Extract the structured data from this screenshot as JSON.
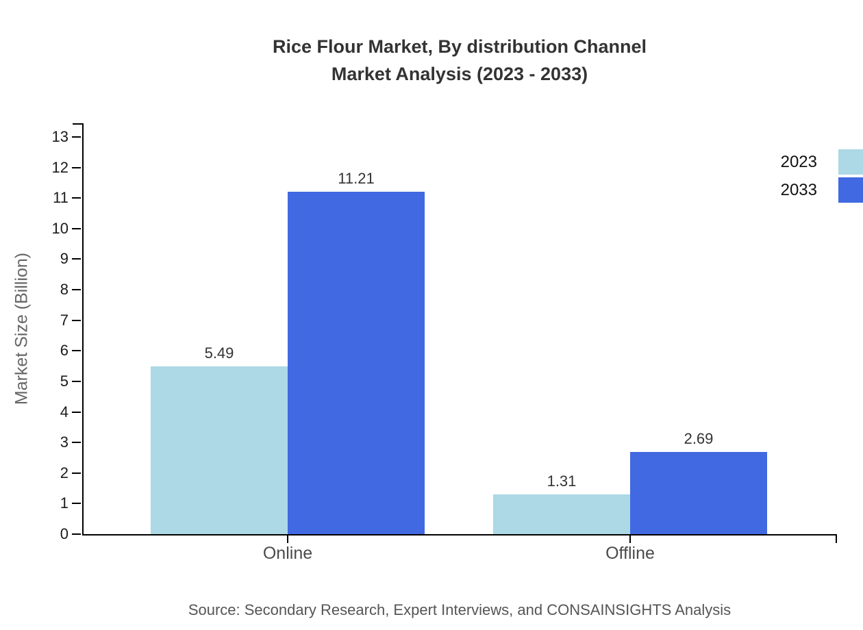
{
  "title": {
    "line1": "Rice Flour Market, By distribution Channel",
    "line2": "Market Analysis (2023 - 2033)"
  },
  "source": "Source: Secondary Research, Expert Interviews, and CONSAINSIGHTS Analysis",
  "colors": {
    "series_2023": "#ADD8E6",
    "series_2033": "#4169E1",
    "axis": "#000000",
    "title_text": "#333333",
    "tick_text": "#1a1a1a",
    "category_text": "#4a4a4a",
    "value_text": "#333333",
    "muted_text": "#666666",
    "source_text": "#555555",
    "background": "#ffffff"
  },
  "chart_data": {
    "type": "bar",
    "title": "Rice Flour Market, By distribution Channel Market Analysis (2023 - 2033)",
    "categories": [
      "Online",
      "Offline"
    ],
    "series": [
      {
        "name": "2023",
        "color": "#ADD8E6",
        "values": [
          5.49,
          1.31
        ]
      },
      {
        "name": "2033",
        "color": "#4169E1",
        "values": [
          11.21,
          2.69
        ]
      }
    ],
    "value_labels": [
      [
        "5.49",
        "1.31"
      ],
      [
        "11.21",
        "2.69"
      ]
    ],
    "xlabel": "",
    "ylabel": "Market Size (Billion)",
    "ylim": [
      0,
      13
    ],
    "yticks": [
      0,
      1,
      2,
      3,
      4,
      5,
      6,
      7,
      8,
      9,
      10,
      11,
      12,
      13
    ],
    "grid": false,
    "legend_position": "top-right",
    "value_labels_shown": true
  },
  "legend": {
    "items": [
      {
        "label": "2023"
      },
      {
        "label": "2033"
      }
    ]
  }
}
